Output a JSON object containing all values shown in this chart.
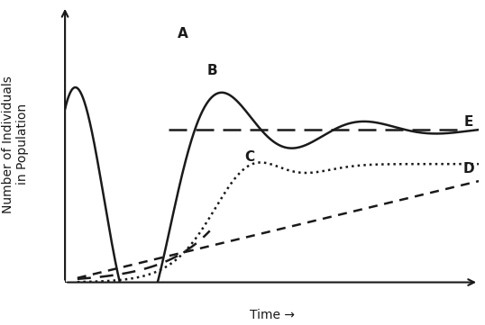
{
  "background_color": "#ffffff",
  "ylabel": "Number of Individuals\nin Population",
  "xlabel": "Time →",
  "E_level": 0.58,
  "label_A": "A",
  "label_B": "B",
  "label_C": "C",
  "label_D": "D",
  "label_E": "E",
  "line_color": "#1a1a1a",
  "xlim": [
    0,
    10
  ],
  "ylim": [
    0,
    1.05
  ]
}
